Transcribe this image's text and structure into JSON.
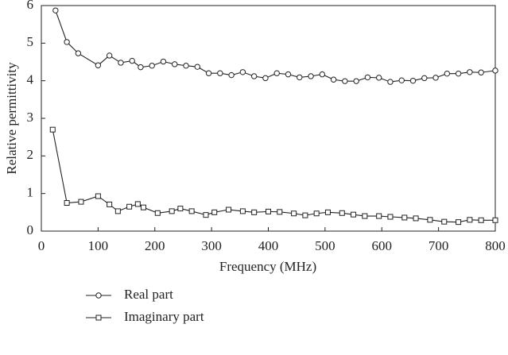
{
  "chart_data": {
    "type": "line",
    "xlabel": "Frequency (MHz)",
    "ylabel": "Relative permittivity",
    "xlim": [
      0,
      800
    ],
    "xticks": [
      0,
      100,
      200,
      300,
      400,
      500,
      600,
      700,
      800
    ],
    "ylim": [
      0,
      6
    ],
    "yticks": [
      0,
      1,
      2,
      3,
      4,
      5,
      6
    ],
    "legend": "bottom",
    "series": [
      {
        "name": "Real part",
        "color": "#222222",
        "marker": "circle",
        "x": [
          25,
          45,
          65,
          100,
          120,
          140,
          160,
          175,
          195,
          215,
          235,
          255,
          275,
          295,
          315,
          335,
          355,
          375,
          395,
          415,
          435,
          455,
          475,
          495,
          515,
          535,
          555,
          575,
          595,
          615,
          635,
          655,
          675,
          695,
          715,
          735,
          755,
          775,
          800
        ],
        "values": [
          5.87,
          5.03,
          4.73,
          4.41,
          4.67,
          4.48,
          4.53,
          4.36,
          4.4,
          4.51,
          4.44,
          4.4,
          4.37,
          4.2,
          4.2,
          4.15,
          4.23,
          4.12,
          4.07,
          4.2,
          4.17,
          4.09,
          4.12,
          4.17,
          4.03,
          3.99,
          3.99,
          4.09,
          4.08,
          3.97,
          4.01,
          4.0,
          4.07,
          4.08,
          4.19,
          4.19,
          4.23,
          4.22,
          4.27
        ]
      },
      {
        "name": "Imaginary part",
        "color": "#222222",
        "marker": "square",
        "x": [
          20,
          45,
          70,
          100,
          120,
          135,
          155,
          170,
          180,
          205,
          230,
          245,
          265,
          290,
          305,
          330,
          355,
          375,
          400,
          420,
          445,
          465,
          485,
          505,
          530,
          550,
          570,
          595,
          615,
          640,
          660,
          685,
          710,
          735,
          755,
          775,
          800
        ],
        "values": [
          2.7,
          0.75,
          0.78,
          0.93,
          0.71,
          0.53,
          0.65,
          0.72,
          0.63,
          0.48,
          0.53,
          0.6,
          0.53,
          0.43,
          0.5,
          0.57,
          0.53,
          0.5,
          0.52,
          0.51,
          0.47,
          0.42,
          0.47,
          0.5,
          0.48,
          0.44,
          0.4,
          0.4,
          0.38,
          0.36,
          0.34,
          0.3,
          0.25,
          0.24,
          0.3,
          0.29,
          0.29
        ]
      }
    ]
  }
}
